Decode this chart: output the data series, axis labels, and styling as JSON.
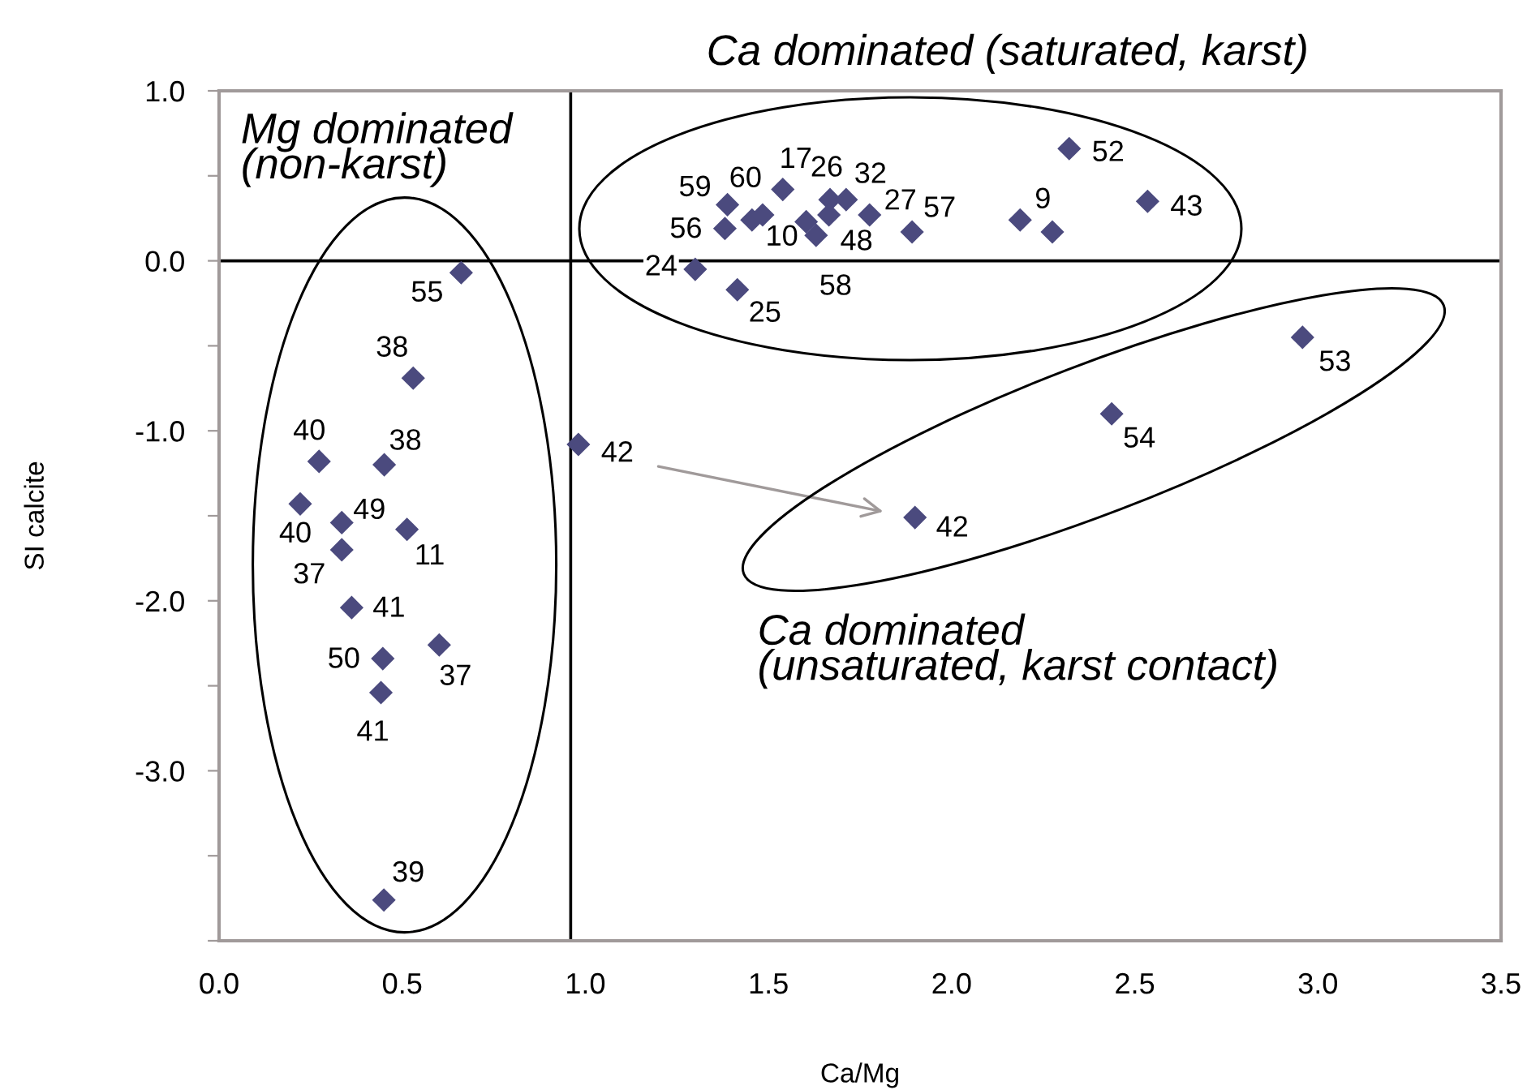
{
  "chart_data": {
    "type": "scatter",
    "xlabel": "Ca/Mg",
    "ylabel": "SI calcite",
    "x": [
      0.661,
      0.53,
      0.273,
      0.451,
      0.981,
      0.2215,
      0.335,
      0.513,
      0.335,
      0.362,
      0.601,
      0.447,
      0.442,
      0.45,
      1.388,
      1.381,
      1.455,
      1.484,
      1.539,
      1.668,
      1.712,
      1.603,
      1.63,
      1.665,
      1.776,
      1.892,
      2.187,
      2.275,
      2.321,
      2.535,
      1.3,
      1.415,
      2.958,
      2.437,
      1.9
    ],
    "values": [
      -0.07,
      -0.69,
      -1.18,
      -1.2,
      -1.08,
      -1.43,
      -1.54,
      -1.58,
      -1.7,
      -2.04,
      -2.26,
      -2.34,
      -2.54,
      -3.76,
      0.33,
      0.19,
      0.24,
      0.27,
      0.42,
      0.36,
      0.36,
      0.23,
      0.15,
      0.27,
      0.27,
      0.17,
      0.24,
      0.17,
      0.66,
      0.35,
      -0.05,
      -0.17,
      -0.45,
      -0.9,
      -1.51
    ],
    "color": "#4b4a7e",
    "marker": "diamond",
    "xlim": [
      0,
      3.5
    ],
    "xticks": [
      {
        "value": 0,
        "label": "0.0"
      },
      {
        "value": 0.5,
        "label": "0.5"
      },
      {
        "value": 1,
        "label": "1.0"
      },
      {
        "value": 1.5,
        "label": "1.5"
      },
      {
        "value": 2,
        "label": "2.0"
      },
      {
        "value": 2.5,
        "label": "2.5"
      },
      {
        "value": 3,
        "label": "3.0"
      },
      {
        "value": 3.5,
        "label": "3.5"
      }
    ],
    "ylim": [
      -4,
      1
    ],
    "yticks": [
      {
        "value": 1,
        "label": "1.0"
      },
      {
        "value": 0.5,
        "label": null
      },
      {
        "value": 0,
        "label": "0.0"
      },
      {
        "value": -0.5,
        "label": null
      },
      {
        "value": -1,
        "label": "-1.0"
      },
      {
        "value": -1.5,
        "label": null
      },
      {
        "value": -2,
        "label": "-2.0"
      },
      {
        "value": -2.5,
        "label": null
      },
      {
        "value": -3,
        "label": "-3.0"
      },
      {
        "value": -3.5,
        "label": null
      },
      {
        "value": -4,
        "label": null
      }
    ],
    "grid": false,
    "ref_lines": [
      {
        "axis": "y",
        "value": 0,
        "color": "#000000"
      },
      {
        "axis": "x",
        "value": 0.96,
        "color": "#000000"
      }
    ],
    "annotations": [
      "Ca dominated (saturated, karst)",
      "Mg dominated\n(non-karst)",
      "Ca dominated\n(unsaturated, karst contact)",
      {
        "text": "55",
        "x": 0.661,
        "y": -0.07
      },
      {
        "text": "38",
        "x": 0.53,
        "y": -0.69
      },
      {
        "text": "40",
        "x": 0.273,
        "y": -1.18
      },
      {
        "text": "38",
        "x": 0.451,
        "y": -1.2
      },
      {
        "text": "42",
        "x": 0.981,
        "y": -1.08
      },
      {
        "text": "49",
        "x": 0.335,
        "y": -1.54
      },
      {
        "text": "40",
        "x": 0.2215,
        "y": -1.43
      },
      {
        "text": "11",
        "x": 0.513,
        "y": -1.58
      },
      {
        "text": "37",
        "x": 0.335,
        "y": -1.7
      },
      {
        "text": "41",
        "x": 0.362,
        "y": -2.04
      },
      {
        "text": "50",
        "x": 0.447,
        "y": -2.34
      },
      {
        "text": "37",
        "x": 0.601,
        "y": -2.26
      },
      {
        "text": "41",
        "x": 0.442,
        "y": -2.54
      },
      {
        "text": "39",
        "x": 0.45,
        "y": -3.76
      },
      {
        "text": "59",
        "x": 1.388,
        "y": 0.33
      },
      {
        "text": "60",
        "x": 1.455,
        "y": 0.24
      },
      {
        "text": "17",
        "x": 1.539,
        "y": 0.42
      },
      {
        "text": "26",
        "x": 1.668,
        "y": 0.36
      },
      {
        "text": "32",
        "x": 1.712,
        "y": 0.36
      },
      {
        "text": "27",
        "x": 1.776,
        "y": 0.27
      },
      {
        "text": "57",
        "x": 1.892,
        "y": 0.17
      },
      {
        "text": "56",
        "x": 1.381,
        "y": 0.19
      },
      {
        "text": "10",
        "x": 1.603,
        "y": 0.23
      },
      {
        "text": "48",
        "x": 1.665,
        "y": 0.27
      },
      {
        "text": "58",
        "x": 1.63,
        "y": 0.15
      },
      {
        "text": "24",
        "x": 1.3,
        "y": -0.05
      },
      {
        "text": "25",
        "x": 1.415,
        "y": -0.17
      },
      {
        "text": "9",
        "x": 2.187,
        "y": 0.24
      },
      {
        "text": "52",
        "x": 2.321,
        "y": 0.66
      },
      {
        "text": "43",
        "x": 2.535,
        "y": 0.35
      },
      {
        "text": "53",
        "x": 2.958,
        "y": -0.45
      },
      {
        "text": "54",
        "x": 2.437,
        "y": -0.9
      },
      {
        "text": "42",
        "x": 1.9,
        "y": -1.51
      }
    ]
  }
}
